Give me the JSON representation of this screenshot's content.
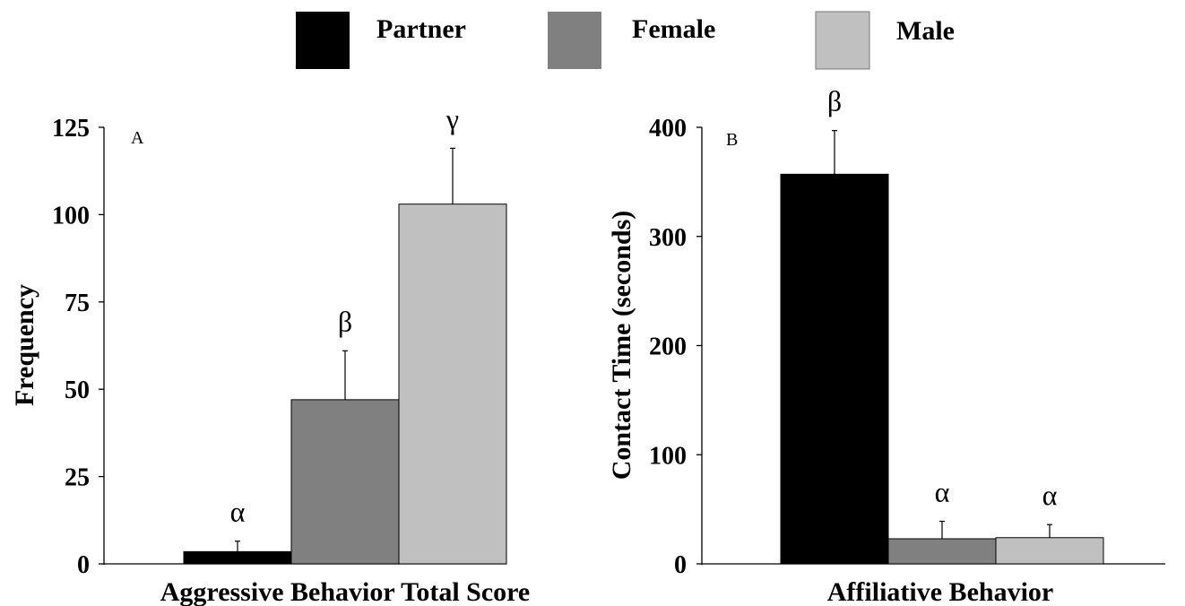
{
  "legend": [
    {
      "label": "Partner",
      "color": "#000000"
    },
    {
      "label": "Female",
      "color": "#808080"
    },
    {
      "label": "Male",
      "color": "#c0c0c0"
    }
  ],
  "chart_data": [
    {
      "type": "bar",
      "panel_label": "A",
      "xlabel": "Aggressive Behavior Total Score",
      "ylabel": "Frequency",
      "ylim": [
        0,
        125
      ],
      "yticks": [
        0,
        25,
        50,
        75,
        100,
        125
      ],
      "categories": [
        "Partner",
        "Female",
        "Male"
      ],
      "values": [
        3.5,
        47,
        103
      ],
      "errors": [
        3,
        14,
        16
      ],
      "significance": [
        "α",
        "β",
        "γ"
      ],
      "colors": [
        "#000000",
        "#808080",
        "#c0c0c0"
      ]
    },
    {
      "type": "bar",
      "panel_label": "B",
      "xlabel": "Affiliative Behavior",
      "ylabel": "Contact Time (seconds)",
      "ylim": [
        0,
        400
      ],
      "yticks": [
        0,
        100,
        200,
        300,
        400
      ],
      "categories": [
        "Partner",
        "Female",
        "Male"
      ],
      "values": [
        357,
        23,
        24
      ],
      "errors": [
        40,
        16,
        12
      ],
      "significance": [
        "β",
        "α",
        "α"
      ],
      "colors": [
        "#000000",
        "#808080",
        "#c0c0c0"
      ]
    }
  ]
}
